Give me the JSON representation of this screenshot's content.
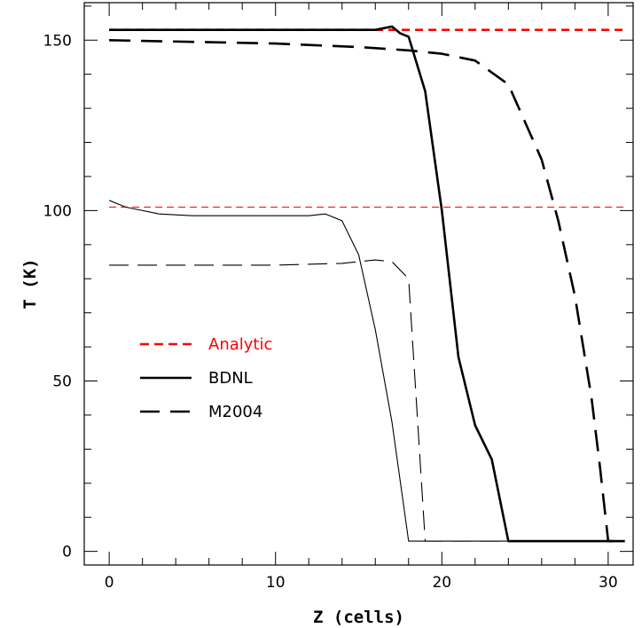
{
  "chart_data": {
    "type": "line",
    "title": "",
    "xlabel": "Z (cells)",
    "ylabel": "T (K)",
    "xlim": [
      -1.5,
      31.5
    ],
    "ylim": [
      -4,
      161
    ],
    "xticks": [
      0,
      10,
      20,
      30
    ],
    "yticks": [
      0,
      50,
      100,
      150
    ],
    "x_minor_step": 2,
    "y_minor_step": 10,
    "grid": false,
    "legend_position": "middle-left",
    "legend": [
      {
        "label": "Analytic",
        "color": "#ff0000",
        "style": "dashed"
      },
      {
        "label": "BDNL",
        "color": "#000000",
        "style": "solid"
      },
      {
        "label": "M2004",
        "color": "#000000",
        "style": "long-dashed"
      }
    ],
    "series": [
      {
        "legend_label": "Analytic",
        "color": "#ff0000",
        "style": "dashed",
        "weight": "thick",
        "x": [
          0,
          31
        ],
        "y": [
          153,
          153
        ]
      },
      {
        "legend_label": "Analytic",
        "color": "#ff0000",
        "style": "dashed",
        "weight": "thin",
        "x": [
          0,
          31
        ],
        "y": [
          101,
          101
        ]
      },
      {
        "legend_label": "BDNL",
        "color": "#000000",
        "style": "solid",
        "weight": "thick",
        "x": [
          0,
          5,
          10,
          15,
          16,
          17,
          17.5,
          18,
          19,
          20,
          21,
          22,
          23,
          24,
          25,
          31
        ],
        "y": [
          153,
          153,
          153,
          153,
          153,
          154,
          152,
          151,
          135,
          100,
          57,
          37,
          27,
          3,
          3,
          3
        ]
      },
      {
        "legend_label": "M2004",
        "color": "#000000",
        "style": "long-dashed",
        "weight": "thick",
        "x": [
          0,
          5,
          10,
          15,
          18,
          20,
          22,
          24,
          26,
          27,
          28,
          29,
          29.5,
          30,
          31
        ],
        "y": [
          150,
          149.5,
          149,
          148,
          147,
          146,
          144,
          137,
          115,
          97,
          75,
          45,
          25,
          3,
          3
        ]
      },
      {
        "legend_label": "BDNL",
        "color": "#000000",
        "style": "solid",
        "weight": "thin",
        "x": [
          0,
          1,
          3,
          5,
          8,
          10,
          12,
          13,
          14,
          15,
          16,
          17,
          18,
          25
        ],
        "y": [
          103,
          101,
          99,
          98.5,
          98.5,
          98.5,
          98.5,
          99,
          97,
          87,
          65,
          38,
          3,
          3
        ]
      },
      {
        "legend_label": "M2004",
        "color": "#000000",
        "style": "long-dashed",
        "weight": "thin",
        "x": [
          0,
          5,
          10,
          14,
          16,
          17,
          18,
          19,
          25
        ],
        "y": [
          84,
          84,
          84,
          84.5,
          85.5,
          85,
          80,
          3,
          3
        ]
      }
    ]
  }
}
